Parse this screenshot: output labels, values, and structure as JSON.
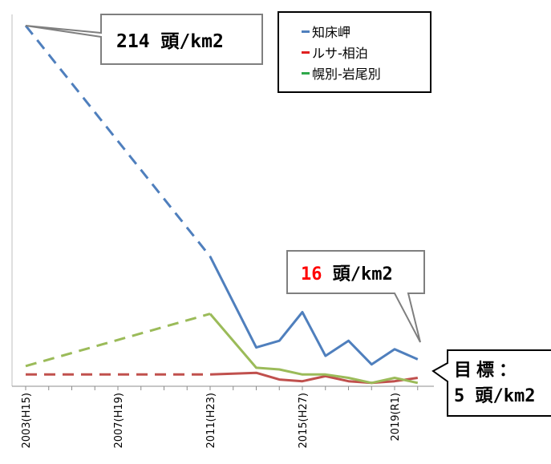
{
  "chart_data": {
    "type": "line",
    "x_ticks": [
      "2003(H15)",
      "2007(H19)",
      "2011(H23)",
      "2015(H27)",
      "2019(R1)"
    ],
    "xlim": [
      2003,
      2020.5
    ],
    "ylim": [
      0,
      214
    ],
    "series": [
      {
        "name": "知床岬",
        "color": "#4f7fbd",
        "dashed_points": [
          [
            2003,
            214
          ],
          [
            2011,
            77
          ]
        ],
        "solid_points": [
          [
            2011,
            77
          ],
          [
            2013,
            23
          ],
          [
            2014,
            27
          ],
          [
            2015,
            44
          ],
          [
            2016,
            18
          ],
          [
            2017,
            27
          ],
          [
            2018,
            13
          ],
          [
            2019,
            22
          ],
          [
            2020,
            16
          ]
        ]
      },
      {
        "name": "ルサ-相泊",
        "color": "#c0504d",
        "dashed_points": [
          [
            2003,
            7
          ],
          [
            2011,
            7
          ]
        ],
        "solid_points": [
          [
            2011,
            7
          ],
          [
            2013,
            8
          ],
          [
            2014,
            4
          ],
          [
            2015,
            3
          ],
          [
            2016,
            6
          ],
          [
            2017,
            3
          ],
          [
            2018,
            2
          ],
          [
            2019,
            3
          ],
          [
            2020,
            5
          ]
        ]
      },
      {
        "name": "幌別-岩尾別",
        "color": "#9bbb59",
        "dashed_points": [
          [
            2003,
            12
          ],
          [
            2011,
            43
          ]
        ],
        "solid_points": [
          [
            2011,
            43
          ],
          [
            2013,
            11
          ],
          [
            2014,
            10
          ],
          [
            2015,
            7
          ],
          [
            2016,
            7
          ],
          [
            2017,
            5
          ],
          [
            2018,
            2
          ],
          [
            2019,
            5
          ],
          [
            2020,
            2
          ]
        ]
      }
    ],
    "legend_position": "top-right",
    "grid": false
  },
  "callouts": {
    "peak": {
      "value": "214",
      "unit": "頭/km2"
    },
    "latest": {
      "value": "16",
      "unit": "頭/km2",
      "value_color": "#ff0000"
    },
    "target": {
      "label": "目標：",
      "value": "5",
      "unit": "頭/km2"
    }
  }
}
